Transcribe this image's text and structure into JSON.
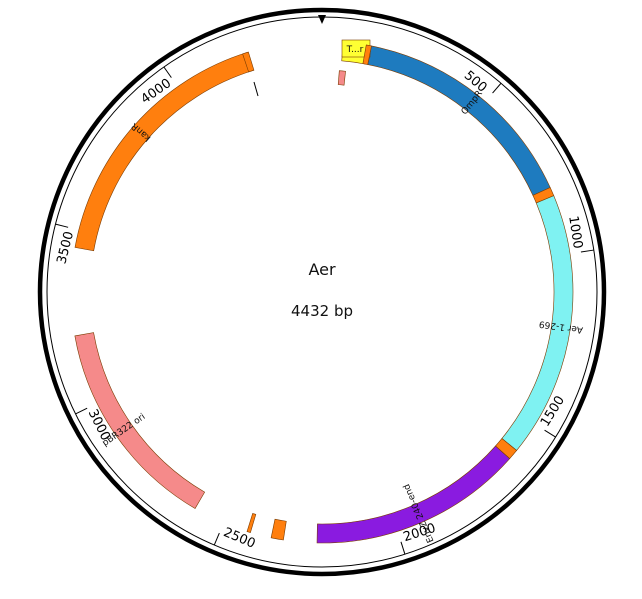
{
  "plasmid": {
    "name": "Aer",
    "length_label": "4432 bp",
    "length_bp": 4432
  },
  "ticks": [
    {
      "label": "500",
      "bp": 500
    },
    {
      "label": "1000",
      "bp": 1000
    },
    {
      "label": "1500",
      "bp": 1500
    },
    {
      "label": "2000",
      "bp": 2000
    },
    {
      "label": "2500",
      "bp": 2500
    },
    {
      "label": "3000",
      "bp": 3000
    },
    {
      "label": "3500",
      "bp": 3500
    },
    {
      "label": "4000",
      "bp": 4000
    }
  ],
  "features": [
    {
      "id": "T-r",
      "label": "T...r",
      "start_bp": 60,
      "end_bp": 135,
      "color": "#ffff33",
      "label_color": "#111111"
    },
    {
      "id": "ompr",
      "label": "OmpR",
      "start_bp": 140,
      "end_bp": 805,
      "color": "#1e7bbf",
      "label_color": "#111111"
    },
    {
      "id": "aer",
      "label": "Aer 1-269",
      "start_bp": 830,
      "end_bp": 1590,
      "color": "#7ff2f2",
      "label_color": "#111111"
    },
    {
      "id": "envz",
      "label": "EnvZ 240-end",
      "start_bp": 1620,
      "end_bp": 2230,
      "color": "#8a1be0",
      "label_color": "#111111"
    },
    {
      "id": "pbr322",
      "label": "pBR322 ori",
      "start_bp": 2590,
      "end_bp": 3200,
      "color": "#f58a8a",
      "label_color": "#111111"
    },
    {
      "id": "kanr",
      "label": "kanR",
      "start_bp": 3450,
      "end_bp": 4220,
      "color": "#ff7f0e",
      "label_color": "#111111"
    }
  ],
  "small_marks": [
    {
      "id": "orange-cap-ompr",
      "start_bp": 125,
      "end_bp": 140,
      "color": "#ff7f0e",
      "track": "outer"
    },
    {
      "id": "orange-cap-kanr",
      "start_bp": 4205,
      "end_bp": 4222,
      "color": "#ff7f0e",
      "track": "outer"
    },
    {
      "id": "junction-ompr-aer",
      "start_bp": 805,
      "end_bp": 830,
      "color": "#ff7f0e",
      "track": "outer"
    },
    {
      "id": "junction-aer-envz",
      "start_bp": 1590,
      "end_bp": 1620,
      "color": "#ff7f0e",
      "track": "outer"
    },
    {
      "id": "small-orange-box",
      "start_bp": 2325,
      "end_bp": 2360,
      "color": "#ff7f0e",
      "track": "outer"
    },
    {
      "id": "small-orange-sliver",
      "start_bp": 2420,
      "end_bp": 2430,
      "color": "#ff7f0e",
      "track": "outer"
    },
    {
      "id": "pink-box-top",
      "start_bp": 55,
      "end_bp": 75,
      "color": "#f58a8a",
      "track": "inner"
    }
  ]
}
